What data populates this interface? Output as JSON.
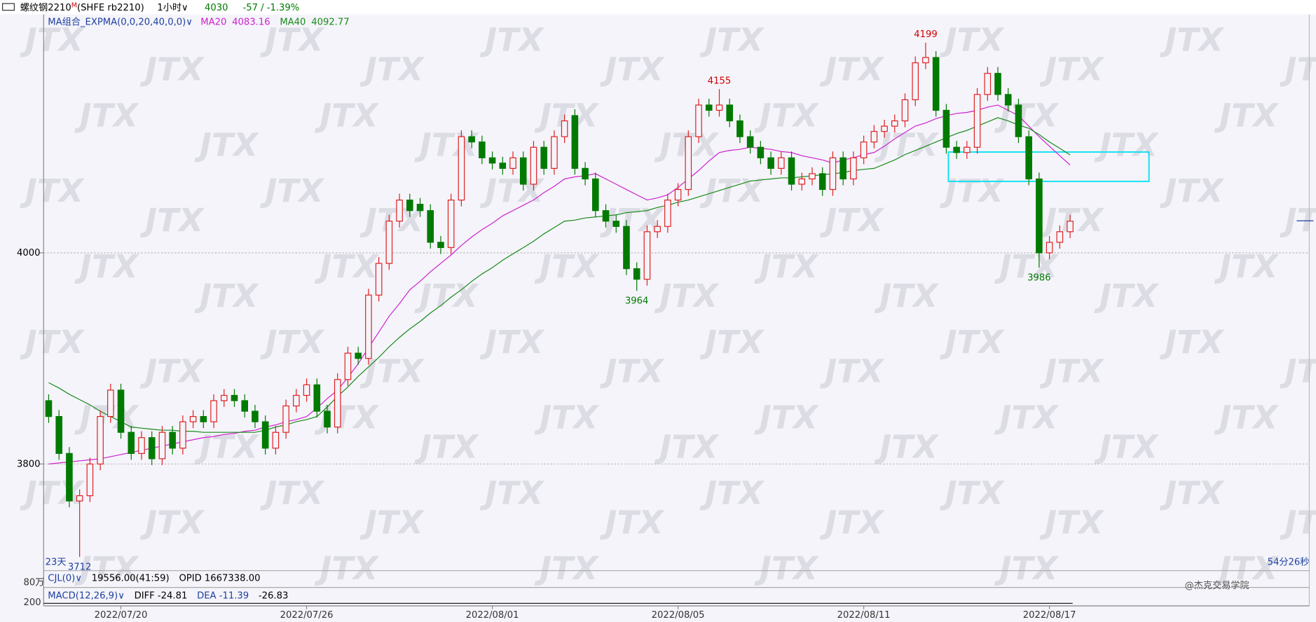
{
  "ui": {
    "symbol": "螺纹钢2210",
    "flag": "M",
    "code": "(SHFE rb2210)",
    "period": "1小时",
    "last": "4030",
    "change": "-57 / -1.39%",
    "indicator": "MA组合_EXPMA(0,0,20,40,0,0)",
    "left_footer": "23天",
    "right_footer": "54分26秒",
    "volume_panel": [
      "CJL(0)",
      "19556.00(41:59)",
      "OPID 1667338.00"
    ],
    "macd_panel": [
      "MACD(12,26,9)",
      "DIFF -24.81",
      "DEA -11.39",
      "-26.83"
    ],
    "panel_axis": [
      "80万",
      "200"
    ],
    "watermark": "JTX",
    "brand": "@杰克交易学院"
  },
  "chart_data": {
    "type": "candlestick",
    "up_color": "#e02020",
    "down_color": "#007a00",
    "grid": true,
    "ylim": [
      3699,
      4225
    ],
    "yticks": [
      3800,
      4000
    ],
    "categories": [
      null,
      null,
      null,
      null,
      null,
      null,
      null,
      "2022/07/20",
      null,
      null,
      null,
      null,
      null,
      null,
      null,
      null,
      null,
      null,
      null,
      null,
      null,
      null,
      null,
      null,
      null,
      "2022/07/26",
      null,
      null,
      null,
      null,
      null,
      null,
      null,
      null,
      null,
      null,
      null,
      null,
      null,
      null,
      null,
      null,
      null,
      "2022/08/01",
      null,
      null,
      null,
      null,
      null,
      null,
      null,
      null,
      null,
      null,
      null,
      null,
      null,
      null,
      null,
      null,
      null,
      "2022/08/05",
      null,
      null,
      null,
      null,
      null,
      null,
      null,
      null,
      null,
      null,
      null,
      null,
      null,
      null,
      null,
      null,
      null,
      "2022/08/11",
      null,
      null,
      null,
      null,
      null,
      null,
      null,
      null,
      null,
      null,
      null,
      null,
      null,
      null,
      null,
      null,
      null,
      "2022/08/17",
      null,
      null
    ],
    "open": [
      3860,
      3845,
      3810,
      3765,
      3770,
      3800,
      3845,
      3870,
      3830,
      3810,
      3825,
      3805,
      3830,
      3815,
      3840,
      3845,
      3840,
      3860,
      3865,
      3860,
      3850,
      3840,
      3815,
      3830,
      3855,
      3865,
      3875,
      3850,
      3835,
      3880,
      3905,
      3900,
      3960,
      3990,
      4030,
      4050,
      4046,
      4040,
      4010,
      4005,
      4050,
      4110,
      4105,
      4090,
      4085,
      4080,
      4090,
      4065,
      4100,
      4080,
      4110,
      4130,
      4080,
      4070,
      4040,
      4030,
      4025,
      3985,
      3975,
      4020,
      4025,
      4050,
      4060,
      4110,
      4140,
      4135,
      4140,
      4125,
      4110,
      4100,
      4090,
      4080,
      4090,
      4065,
      4070,
      4075,
      4060,
      4090,
      4070,
      4090,
      4105,
      4115,
      4120,
      4125,
      4145,
      4180,
      4185,
      4135,
      4100,
      4095,
      4100,
      4150,
      4170,
      4150,
      4140,
      4110,
      4070,
      4000,
      4010,
      4020
    ],
    "high": [
      3866,
      3851,
      3816,
      3776,
      3806,
      3851,
      3876,
      3876,
      3836,
      3831,
      3831,
      3836,
      3836,
      3846,
      3851,
      3851,
      3866,
      3871,
      3871,
      3866,
      3856,
      3846,
      3836,
      3861,
      3871,
      3881,
      3881,
      3856,
      3886,
      3911,
      3911,
      3966,
      3996,
      4036,
      4056,
      4056,
      4052,
      4046,
      4016,
      4056,
      4116,
      4116,
      4111,
      4096,
      4091,
      4096,
      4096,
      4106,
      4106,
      4116,
      4131,
      4136,
      4086,
      4076,
      4046,
      4036,
      4031,
      3991,
      4026,
      4031,
      4056,
      4066,
      4116,
      4146,
      4146,
      4155,
      4146,
      4131,
      4116,
      4106,
      4096,
      4096,
      4096,
      4076,
      4081,
      4081,
      4096,
      4096,
      4096,
      4111,
      4121,
      4126,
      4131,
      4151,
      4186,
      4199,
      4191,
      4141,
      4106,
      4106,
      4156,
      4176,
      4176,
      4156,
      4146,
      4116,
      4076,
      4016,
      4026,
      4036
    ],
    "low": [
      3839,
      3804,
      3759,
      3712,
      3764,
      3794,
      3839,
      3824,
      3804,
      3804,
      3799,
      3799,
      3809,
      3809,
      3834,
      3834,
      3834,
      3854,
      3854,
      3844,
      3834,
      3809,
      3809,
      3824,
      3849,
      3859,
      3844,
      3829,
      3829,
      3874,
      3894,
      3894,
      3954,
      3984,
      4024,
      4034,
      4034,
      4004,
      3999,
      3999,
      4044,
      4099,
      4084,
      4079,
      4074,
      4074,
      4059,
      4059,
      4074,
      4074,
      4104,
      4074,
      4064,
      4034,
      4024,
      4019,
      3979,
      3964,
      3969,
      4014,
      4019,
      4044,
      4054,
      4104,
      4129,
      4129,
      4119,
      4104,
      4094,
      4084,
      4074,
      4074,
      4059,
      4059,
      4064,
      4054,
      4054,
      4064,
      4064,
      4084,
      4099,
      4109,
      4114,
      4119,
      4139,
      4174,
      4129,
      4094,
      4089,
      4089,
      4094,
      4144,
      4144,
      4134,
      4104,
      4064,
      3986,
      3994,
      4004,
      4014
    ],
    "close": [
      3845,
      3810,
      3765,
      3770,
      3800,
      3845,
      3870,
      3830,
      3810,
      3825,
      3805,
      3830,
      3815,
      3840,
      3845,
      3840,
      3860,
      3865,
      3860,
      3850,
      3840,
      3815,
      3830,
      3855,
      3865,
      3875,
      3850,
      3835,
      3880,
      3905,
      3900,
      3960,
      3990,
      4030,
      4050,
      4040,
      4040,
      4010,
      4005,
      4050,
      4110,
      4105,
      4090,
      4085,
      4080,
      4090,
      4065,
      4100,
      4080,
      4110,
      4125,
      4080,
      4070,
      4040,
      4030,
      4025,
      3985,
      3975,
      4020,
      4025,
      4050,
      4060,
      4110,
      4140,
      4135,
      4140,
      4125,
      4110,
      4100,
      4090,
      4080,
      4090,
      4065,
      4070,
      4075,
      4060,
      4090,
      4070,
      4090,
      4105,
      4115,
      4120,
      4125,
      4145,
      4180,
      4185,
      4135,
      4100,
      4095,
      4100,
      4150,
      4170,
      4150,
      4140,
      4110,
      4070,
      4000,
      4010,
      4020,
      4030
    ],
    "series": [
      {
        "name": "MA20",
        "color": "#d020d0",
        "values": [
          3800,
          3801,
          3802,
          3803,
          3804,
          3805,
          3807,
          3809,
          3811,
          3813,
          3815,
          3817,
          3819,
          3821,
          3823,
          3825,
          3826,
          3828,
          3829,
          3831,
          3832,
          3835,
          3837,
          3840,
          3842,
          3845,
          3853,
          3862,
          3870,
          3882,
          3895,
          3910,
          3925,
          3940,
          3952,
          3965,
          3973,
          3982,
          3990,
          3998,
          4007,
          4015,
          4022,
          4028,
          4035,
          4040,
          4045,
          4050,
          4057,
          4063,
          4070,
          4072,
          4073,
          4075,
          4070,
          4065,
          4060,
          4055,
          4050,
          4052,
          4055,
          4062,
          4070,
          4078,
          4087,
          4095,
          4097,
          4098,
          4100,
          4099,
          4098,
          4096,
          4095,
          4092,
          4090,
          4088,
          4085,
          4088,
          4090,
          4093,
          4095,
          4101,
          4108,
          4114,
          4120,
          4123,
          4127,
          4130,
          4132,
          4133,
          4135,
          4138,
          4140,
          4135,
          4130,
          4120,
          4110,
          4101,
          4092,
          4083.16
        ]
      },
      {
        "name": "MA40",
        "color": "#1a8a1a",
        "values": [
          3877,
          3872,
          3866,
          3861,
          3856,
          3850,
          3845,
          3840,
          3835,
          3834,
          3833,
          3832,
          3832,
          3831,
          3831,
          3830,
          3830,
          3830,
          3830,
          3830,
          3830,
          3832,
          3835,
          3837,
          3840,
          3842,
          3845,
          3854,
          3864,
          3873,
          3883,
          3892,
          3901,
          3911,
          3920,
          3928,
          3935,
          3943,
          3950,
          3958,
          3965,
          3973,
          3980,
          3986,
          3993,
          3999,
          4005,
          4011,
          4018,
          4024,
          4030,
          4031,
          4033,
          4034,
          4035,
          4036,
          4038,
          4039,
          4040,
          4043,
          4045,
          4048,
          4050,
          4053,
          4056,
          4059,
          4062,
          4065,
          4068,
          4069,
          4070,
          4071,
          4071,
          4072,
          4073,
          4074,
          4075,
          4076,
          4078,
          4079,
          4080,
          4084,
          4088,
          4093,
          4097,
          4101,
          4105,
          4109,
          4113,
          4116,
          4120,
          4124,
          4128,
          4125,
          4121,
          4118,
          4112,
          4105,
          4099,
          4092.77
        ]
      }
    ]
  }
}
